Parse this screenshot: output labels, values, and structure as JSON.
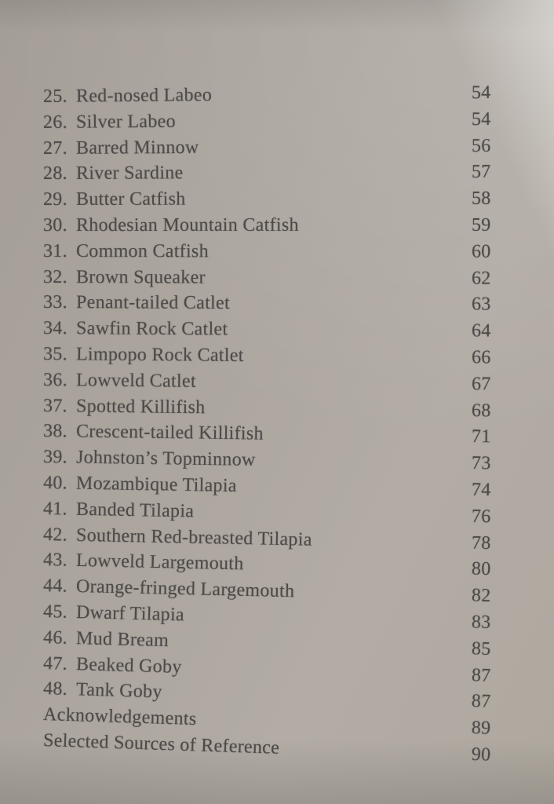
{
  "colors": {
    "paper": "#aca69f",
    "ink": "#4d4a47"
  },
  "toc": {
    "entries": [
      {
        "num": "25.",
        "title": "Red-nosed Labeo",
        "page": "54"
      },
      {
        "num": "26.",
        "title": "Silver Labeo",
        "page": "54"
      },
      {
        "num": "27.",
        "title": "Barred Minnow",
        "page": "56"
      },
      {
        "num": "28.",
        "title": "River Sardine",
        "page": "57"
      },
      {
        "num": "29.",
        "title": "Butter Catfish",
        "page": "58"
      },
      {
        "num": "30.",
        "title": "Rhodesian Mountain Catfish",
        "page": "59"
      },
      {
        "num": "31.",
        "title": "Common Catfish",
        "page": "60"
      },
      {
        "num": "32.",
        "title": "Brown Squeaker",
        "page": "62"
      },
      {
        "num": "33.",
        "title": "Penant-tailed Catlet",
        "page": "63"
      },
      {
        "num": "34.",
        "title": "Sawfin Rock Catlet",
        "page": "64"
      },
      {
        "num": "35.",
        "title": "Limpopo Rock Catlet",
        "page": "66"
      },
      {
        "num": "36.",
        "title": "Lowveld Catlet",
        "page": "67"
      },
      {
        "num": "37.",
        "title": "Spotted Killifish",
        "page": "68"
      },
      {
        "num": "38.",
        "title": "Crescent-tailed Killifish",
        "page": "71"
      },
      {
        "num": "39.",
        "title": "Johnston’s Topminnow",
        "page": "73"
      },
      {
        "num": "40.",
        "title": "Mozambique Tilapia",
        "page": "74"
      },
      {
        "num": "41.",
        "title": "Banded Tilapia",
        "page": "76"
      },
      {
        "num": "42.",
        "title": "Southern Red-breasted Tilapia",
        "page": "78"
      },
      {
        "num": "43.",
        "title": "Lowveld Largemouth",
        "page": "80"
      },
      {
        "num": "44.",
        "title": "Orange-fringed Largemouth",
        "page": "82"
      },
      {
        "num": "45.",
        "title": "Dwarf Tilapia",
        "page": "83"
      },
      {
        "num": "46.",
        "title": "Mud Bream",
        "page": "85"
      },
      {
        "num": "47.",
        "title": "Beaked Goby",
        "page": "87"
      },
      {
        "num": "48.",
        "title": "Tank Goby",
        "page": "87"
      },
      {
        "num": "",
        "title": "Acknowledgements",
        "page": "89"
      },
      {
        "num": "",
        "title": "Selected Sources of Reference",
        "page": "90"
      }
    ]
  }
}
